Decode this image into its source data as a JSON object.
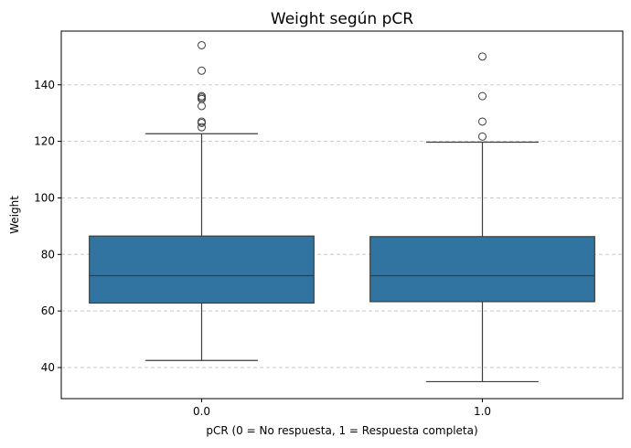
{
  "chart_data": {
    "type": "box",
    "title": "Weight según pCR",
    "xlabel": "pCR (0 = No respuesta, 1 = Respuesta completa)",
    "ylabel": "Weight",
    "ylim": [
      29,
      159
    ],
    "yticks": [
      40,
      60,
      80,
      100,
      120,
      140
    ],
    "grid": "horizontal dashed",
    "box_color": "#3274a1",
    "line_color": "#3d3d3d",
    "grid_color": "#c8c8c8",
    "categories": [
      "0.0",
      "1.0"
    ],
    "boxes": [
      {
        "category": "0.0",
        "whisker_low": 42.5,
        "q1": 62.8,
        "median": 72.5,
        "q3": 86.5,
        "whisker_high": 122.7,
        "outliers": [
          125,
          126.5,
          127,
          132.5,
          135,
          135.5,
          136,
          145,
          154
        ]
      },
      {
        "category": "1.0",
        "whisker_low": 35,
        "q1": 63.3,
        "median": 72.5,
        "q3": 86.3,
        "whisker_high": 119.7,
        "outliers": [
          121.7,
          127,
          136,
          150
        ]
      }
    ]
  }
}
